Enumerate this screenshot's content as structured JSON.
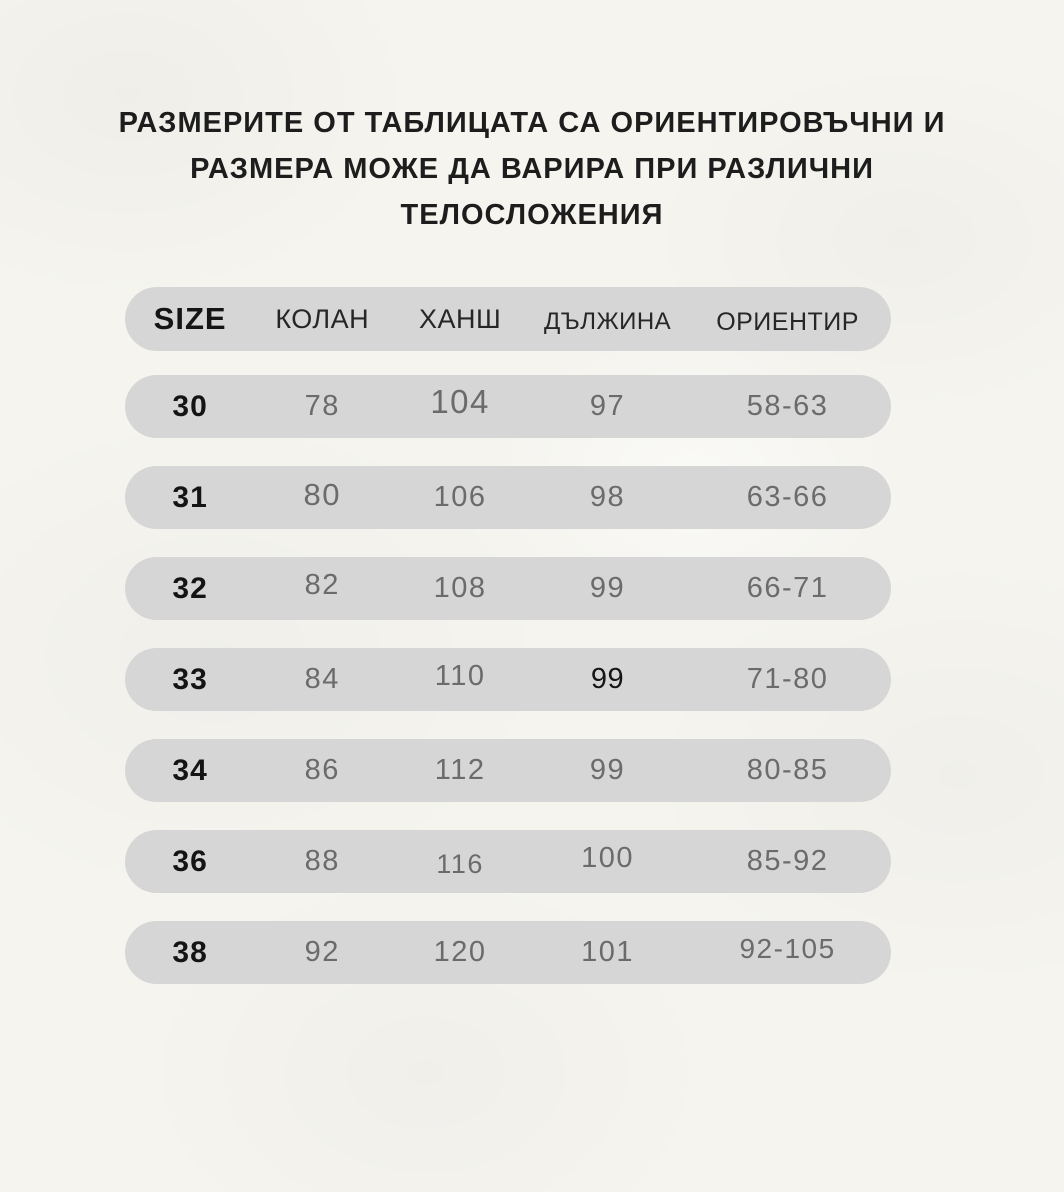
{
  "page": {
    "background_color": "#f5f4ef",
    "title_lines": [
      "РАЗМЕРИТЕ ОТ ТАБЛИЦАТА СА ОРИЕНТИРОВЪЧНИ И",
      "РАЗМЕРА МОЖЕ ДА ВАРИРА ПРИ РАЗЛИЧНИ",
      "ТЕЛОСЛОЖЕНИЯ"
    ]
  },
  "size_table": {
    "pill_color": "#d6d6d6",
    "header": {
      "size_label": "SIZE",
      "columns": [
        "КОЛАН",
        "ХАНШ",
        "ДЪЛЖИНА",
        "ОРИЕНТИР"
      ]
    },
    "rows": [
      {
        "size": "30",
        "kolan": "78",
        "hansh": "104",
        "dalzhina": "97",
        "orientir": "58-63"
      },
      {
        "size": "31",
        "kolan": "80",
        "hansh": "106",
        "dalzhina": "98",
        "orientir": "63-66"
      },
      {
        "size": "32",
        "kolan": "82",
        "hansh": "108",
        "dalzhina": "99",
        "orientir": "66-71"
      },
      {
        "size": "33",
        "kolan": "84",
        "hansh": "110",
        "dalzhina": "99",
        "dalzhina_emphasis": true,
        "orientir": "71-80"
      },
      {
        "size": "34",
        "kolan": "86",
        "hansh": "112",
        "dalzhina": "99",
        "orientir": "80-85"
      },
      {
        "size": "36",
        "kolan": "88",
        "hansh": "116",
        "dalzhina": "100",
        "orientir": "85-92"
      },
      {
        "size": "38",
        "kolan": "92",
        "hansh": "120",
        "dalzhina": "101",
        "orientir": "92-105"
      }
    ]
  }
}
